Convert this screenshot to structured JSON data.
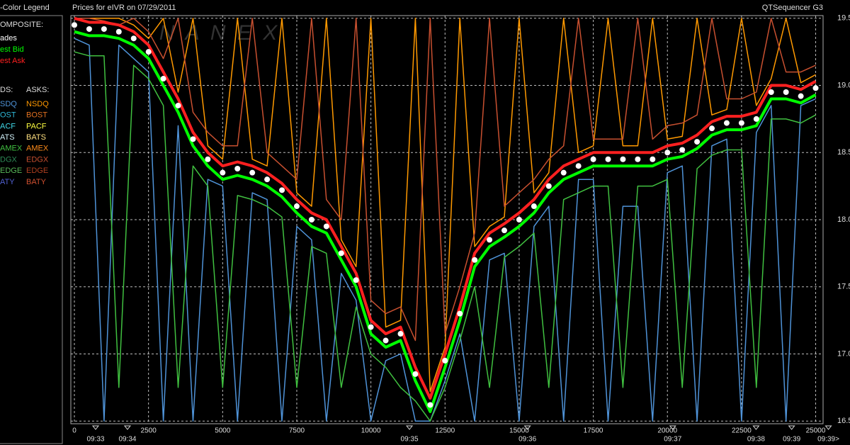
{
  "chart_data": {
    "type": "line",
    "title": "Prices for  eIVR  on  07/29/2011",
    "subtitle": "QTSequencer G3",
    "watermark": "N A N E X",
    "legend_title": "-Color Legend",
    "composite_title": "OMPOSITE:",
    "bids_title": "DS:",
    "asks_title": "ASKS:",
    "grid": true,
    "xlim": [
      -120,
      25250
    ],
    "ylim": [
      16.48,
      19.52
    ],
    "xticks": [
      0,
      2500,
      5000,
      7500,
      10000,
      12500,
      15000,
      17500,
      20000,
      22500,
      25000
    ],
    "yticks": [
      16.5,
      {
        "value": 17,
        "label": "17.0"
      },
      17.5,
      {
        "value": 18,
        "label": "18.0"
      },
      18.5,
      {
        "value": 19,
        "label": "19.0"
      },
      19.5
    ],
    "time_ticks": [
      {
        "value": 716,
        "label": "09:33"
      },
      {
        "value": 1790,
        "label": "09:34"
      },
      {
        "value": 11300,
        "label": "09:35"
      },
      {
        "value": 15280,
        "label": "09:36"
      },
      {
        "value": 20180,
        "label": "09:37"
      },
      {
        "value": 22990,
        "label": "09:38"
      },
      {
        "value": 24190,
        "label": "09:39"
      },
      {
        "value": 25430,
        "label": "09:39>"
      }
    ],
    "x": [
      0,
      500,
      1000,
      1500,
      2000,
      2500,
      3000,
      3500,
      4000,
      4500,
      5000,
      5500,
      6000,
      6500,
      7000,
      7500,
      8000,
      8500,
      9000,
      9500,
      10000,
      10500,
      11000,
      11500,
      12000,
      12500,
      13000,
      13500,
      14000,
      14500,
      15000,
      15500,
      16000,
      16500,
      17000,
      17500,
      18000,
      18500,
      19000,
      19500,
      20000,
      20500,
      21000,
      21500,
      22000,
      22500,
      23000,
      23500,
      24000,
      24500,
      25000
    ],
    "series": [
      {
        "name": "ades",
        "color": "#ffffff",
        "values": [
          19.45,
          19.42,
          19.42,
          19.4,
          19.35,
          19.25,
          19.05,
          18.85,
          18.6,
          18.45,
          18.35,
          18.38,
          18.35,
          18.3,
          18.22,
          18.1,
          18.0,
          17.95,
          17.75,
          17.55,
          17.2,
          17.1,
          17.15,
          16.85,
          16.62,
          16.95,
          17.3,
          17.7,
          17.85,
          17.92,
          18.0,
          18.1,
          18.25,
          18.35,
          18.4,
          18.45,
          18.45,
          18.45,
          18.45,
          18.45,
          18.5,
          18.52,
          18.58,
          18.68,
          18.72,
          18.72,
          18.75,
          18.95,
          18.95,
          18.92,
          18.98
        ]
      },
      {
        "name": "est Bid",
        "color": "#00ff00",
        "values": [
          19.4,
          19.37,
          19.37,
          19.35,
          19.3,
          19.2,
          19.0,
          18.8,
          18.55,
          18.4,
          18.3,
          18.33,
          18.3,
          18.25,
          18.17,
          18.05,
          17.95,
          17.9,
          17.7,
          17.5,
          17.15,
          17.05,
          17.1,
          16.8,
          16.57,
          16.9,
          17.25,
          17.65,
          17.8,
          17.87,
          17.95,
          18.05,
          18.2,
          18.3,
          18.35,
          18.4,
          18.4,
          18.4,
          18.4,
          18.4,
          18.45,
          18.47,
          18.53,
          18.63,
          18.67,
          18.67,
          18.7,
          18.9,
          18.9,
          18.87,
          18.93
        ]
      },
      {
        "name": "est Ask",
        "color": "#ff2020",
        "values": [
          19.5,
          19.47,
          19.47,
          19.45,
          19.4,
          19.3,
          19.1,
          18.9,
          18.65,
          18.5,
          18.4,
          18.43,
          18.4,
          18.35,
          18.27,
          18.15,
          18.05,
          18.0,
          17.8,
          17.6,
          17.25,
          17.15,
          17.2,
          16.9,
          16.67,
          17.0,
          17.35,
          17.75,
          17.9,
          17.97,
          18.05,
          18.15,
          18.3,
          18.4,
          18.45,
          18.5,
          18.5,
          18.5,
          18.5,
          18.5,
          18.55,
          18.57,
          18.63,
          18.73,
          18.77,
          18.77,
          18.8,
          19.0,
          19.0,
          18.97,
          19.03
        ]
      }
    ],
    "bid_series": [
      {
        "name": "SDQ",
        "color": "#4f93d8",
        "values": [
          19.35,
          19.3,
          16.5,
          19.3,
          19.2,
          19.1,
          16.5,
          18.7,
          16.5,
          18.3,
          18.25,
          16.5,
          18.2,
          18.15,
          16.5,
          17.95,
          17.85,
          16.5,
          17.6,
          17.4,
          16.5,
          16.95,
          17.0,
          16.5,
          16.5,
          16.8,
          17.15,
          16.5,
          17.7,
          17.75,
          16.5,
          17.95,
          18.1,
          16.5,
          18.3,
          18.3,
          16.5,
          18.1,
          18.1,
          16.5,
          18.35,
          18.4,
          16.5,
          18.55,
          18.6,
          16.5,
          18.65,
          18.85,
          16.5,
          18.85,
          18.9
        ]
      },
      {
        "name": "OST",
        "color": "#2fb8d8"
      },
      {
        "name": "ACF",
        "color": "#40d8e8"
      },
      {
        "name": "ATS",
        "color": "#d0f0f8"
      },
      {
        "name": "AMEX",
        "color": "#40c040",
        "values": [
          19.25,
          19.22,
          19.22,
          16.75,
          19.15,
          19.05,
          18.85,
          16.75,
          18.4,
          18.25,
          16.75,
          18.18,
          18.15,
          18.1,
          18.02,
          16.75,
          17.8,
          17.75,
          16.75,
          17.35,
          17.0,
          16.9,
          16.75,
          16.65,
          16.5,
          16.75,
          17.1,
          17.5,
          16.75,
          17.72,
          17.8,
          17.9,
          16.75,
          18.15,
          18.2,
          18.25,
          18.25,
          16.75,
          18.25,
          18.25,
          18.3,
          16.75,
          18.38,
          18.48,
          18.52,
          18.52,
          16.75,
          18.75,
          18.75,
          18.72,
          18.78
        ]
      },
      {
        "name": "DGX",
        "color": "#2e8b57"
      },
      {
        "name": "EDGE",
        "color": "#58b858"
      },
      {
        "name": "ATY",
        "color": "#5060d0"
      }
    ],
    "ask_series": [
      {
        "name": "NSDQ",
        "color": "#ff9900",
        "values": [
          19.5,
          19.5,
          19.5,
          19.5,
          19.45,
          19.35,
          19.5,
          18.95,
          19.5,
          18.55,
          18.45,
          19.5,
          18.45,
          18.4,
          19.5,
          18.2,
          18.1,
          19.5,
          17.85,
          17.65,
          19.5,
          17.2,
          17.25,
          19.5,
          16.72,
          17.05,
          19.5,
          17.8,
          17.95,
          18.02,
          19.5,
          18.2,
          18.35,
          19.5,
          18.5,
          18.55,
          19.5,
          18.55,
          18.55,
          19.5,
          18.6,
          18.62,
          19.5,
          18.78,
          18.82,
          19.5,
          18.85,
          19.05,
          19.5,
          19.02,
          19.08
        ]
      },
      {
        "name": "BOST",
        "color": "#e07020"
      },
      {
        "name": "PACF",
        "color": "#ffff40"
      },
      {
        "name": "BATS",
        "color": "#ffe080"
      },
      {
        "name": "AMEX",
        "color": "#ff8c1a"
      },
      {
        "name": "EDGX",
        "color": "#c85030",
        "values": [
          19.5,
          19.5,
          19.48,
          19.45,
          19.5,
          19.4,
          19.2,
          19.5,
          18.8,
          18.65,
          18.55,
          18.55,
          19.5,
          18.5,
          18.4,
          18.3,
          19.5,
          18.15,
          18.0,
          19.5,
          17.4,
          17.3,
          17.35,
          17.1,
          19.5,
          17.15,
          17.5,
          17.9,
          19.5,
          18.1,
          18.2,
          18.3,
          18.45,
          18.55,
          19.5,
          18.6,
          18.6,
          18.6,
          19.5,
          18.6,
          18.7,
          18.72,
          18.78,
          19.5,
          18.9,
          18.9,
          18.95,
          19.5,
          19.1,
          19.1,
          19.15
        ]
      },
      {
        "name": "EDGE",
        "color": "#b04020"
      },
      {
        "name": "BATY",
        "color": "#d05030"
      }
    ]
  }
}
